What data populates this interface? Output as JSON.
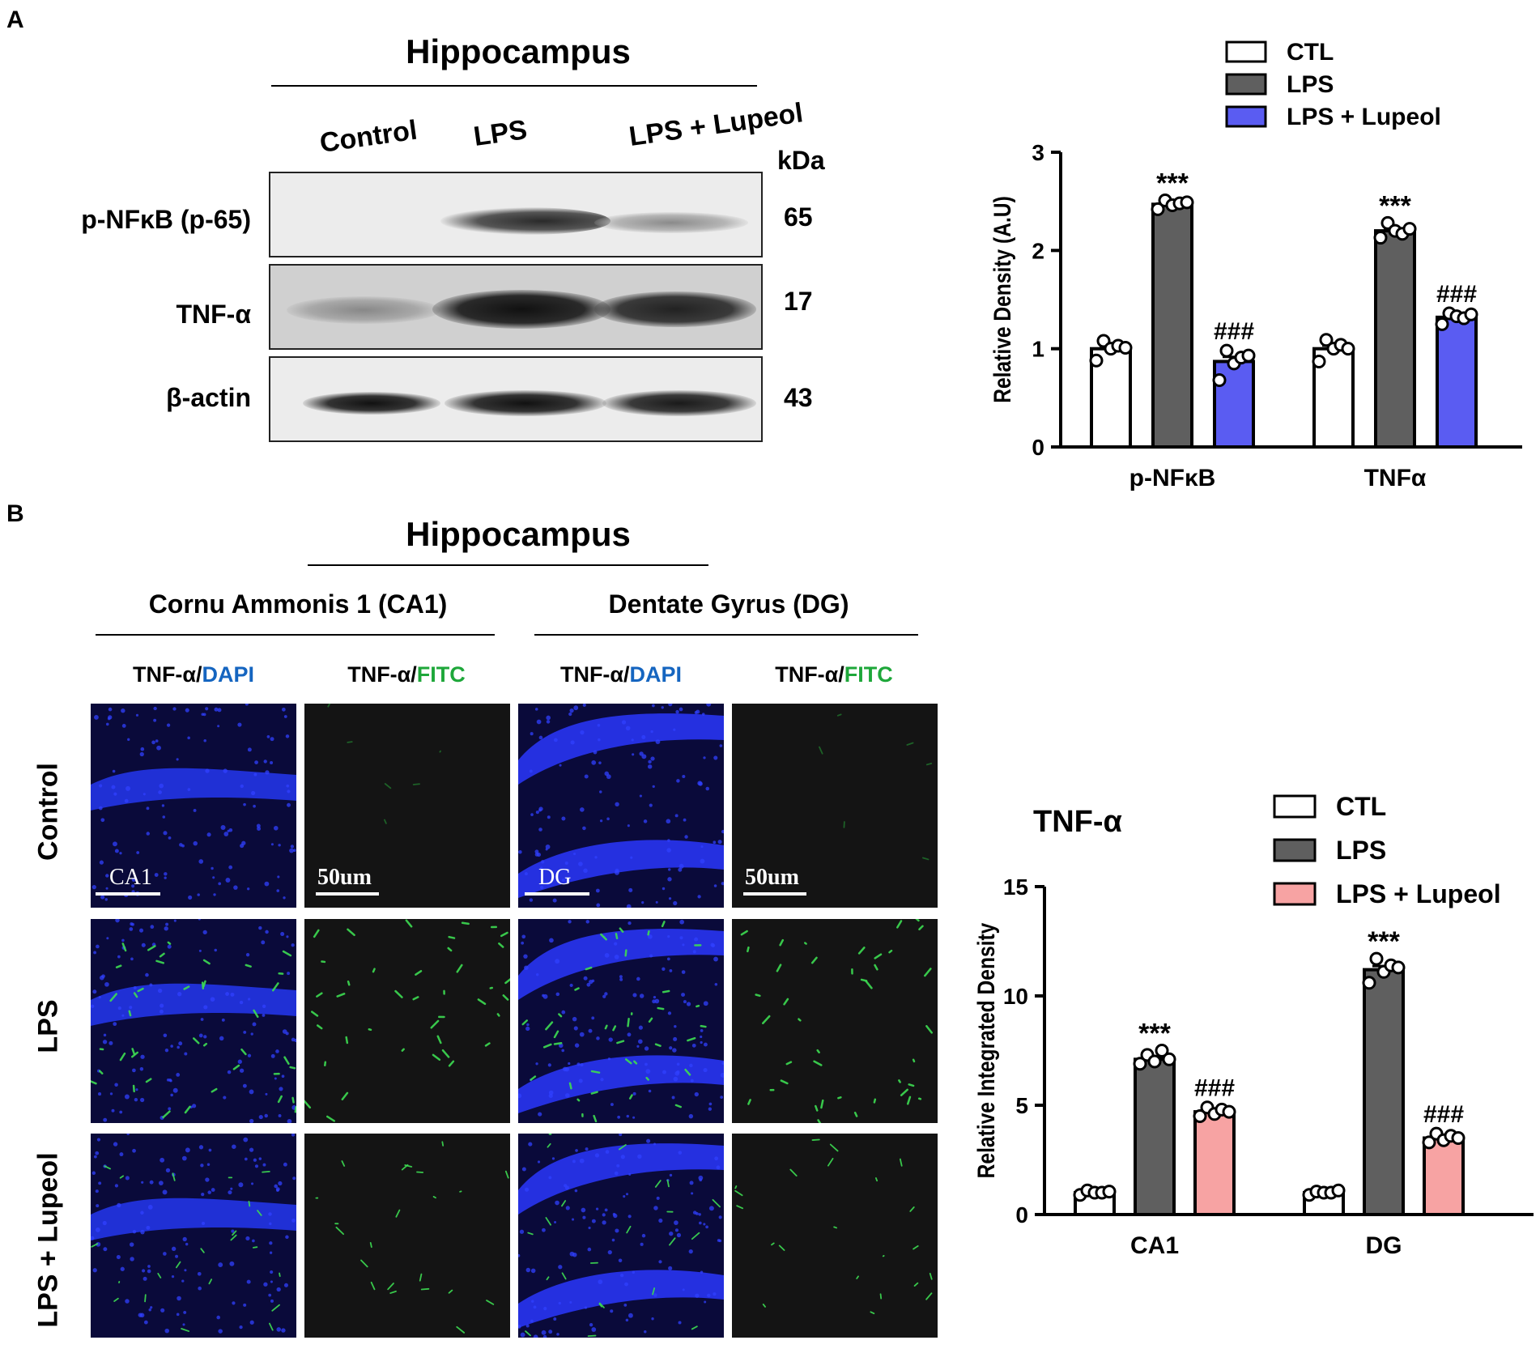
{
  "panelA": {
    "letter": "A",
    "title": "Hippocampus",
    "lanes": [
      "Control",
      "LPS",
      "LPS + Lupeol"
    ],
    "kda_label": "kDa",
    "rows": [
      {
        "label": "p-NFκB (p-65)",
        "kda": "65"
      },
      {
        "label": "TNF-α",
        "kda": "17"
      },
      {
        "label": "β-actin",
        "kda": "43"
      }
    ]
  },
  "panelB": {
    "letter": "B",
    "title": "Hippocampus",
    "regions": [
      "Cornu Ammonis 1 (CA1)",
      "Dentate  Gyrus (DG)"
    ],
    "stain_prefix": "TNF-α/",
    "stains": [
      "DAPI",
      "FITC",
      "DAPI",
      "FITC"
    ],
    "row_labels": [
      "Control",
      "LPS",
      "LPS + Lupeol"
    ],
    "image_labels": [
      "CA1",
      "DG"
    ],
    "scale_text": "50um"
  },
  "colors": {
    "ctl": "#ffffff",
    "lps": "#5f5f5f",
    "lupeol_a": "#5a5cf2",
    "lupeol_b": "#f7a3a3",
    "dapi_blue": "#1565c0",
    "fitc_green": "#1ea73a"
  },
  "chart_data": [
    {
      "type": "bar",
      "title": "",
      "categories": [
        "p-NFκB",
        "TNFα"
      ],
      "ylabel": "Relative Density (A.U)",
      "xlabel": "",
      "ylim": [
        0,
        3
      ],
      "yticks": [
        0,
        1,
        2,
        3
      ],
      "legend": "top-right",
      "series": [
        {
          "name": "CTL",
          "values": [
            1.0,
            1.0
          ],
          "points": [
            [
              0.88,
              1.08,
              1.0,
              1.03,
              1.01
            ],
            [
              0.87,
              1.09,
              1.0,
              1.04,
              1.0
            ]
          ]
        },
        {
          "name": "LPS",
          "values": [
            2.47,
            2.2
          ],
          "points": [
            [
              2.42,
              2.51,
              2.46,
              2.48,
              2.49
            ],
            [
              2.13,
              2.28,
              2.2,
              2.17,
              2.22
            ]
          ]
        },
        {
          "name": "LPS + Lupeol",
          "values": [
            0.87,
            1.32
          ],
          "points": [
            [
              0.68,
              0.98,
              0.85,
              0.91,
              0.93
            ],
            [
              1.25,
              1.36,
              1.33,
              1.31,
              1.35
            ]
          ]
        }
      ],
      "annotations": [
        {
          "category": "p-NFκB",
          "series": "LPS",
          "text": "***"
        },
        {
          "category": "p-NFκB",
          "series": "LPS + Lupeol",
          "text": "###"
        },
        {
          "category": "TNFα",
          "series": "LPS",
          "text": "***"
        },
        {
          "category": "TNFα",
          "series": "LPS + Lupeol",
          "text": "###"
        }
      ]
    },
    {
      "type": "bar",
      "title": "TNF-α",
      "categories": [
        "CA1",
        "DG"
      ],
      "ylabel": "Relative Integrated Density",
      "xlabel": "",
      "ylim": [
        0,
        15
      ],
      "yticks": [
        0,
        5,
        10,
        15
      ],
      "legend": "top-right",
      "series": [
        {
          "name": "CTL",
          "values": [
            1.0,
            1.0
          ],
          "points": [
            [
              0.9,
              1.1,
              1.0,
              1.0,
              1.05
            ],
            [
              0.9,
              1.05,
              1.0,
              1.0,
              1.1
            ]
          ]
        },
        {
          "name": "LPS",
          "values": [
            7.1,
            11.2
          ],
          "points": [
            [
              6.9,
              7.3,
              7.0,
              7.5,
              7.1
            ],
            [
              10.6,
              11.7,
              11.1,
              11.4,
              11.3
            ]
          ]
        },
        {
          "name": "LPS + Lupeol",
          "values": [
            4.7,
            3.5
          ],
          "points": [
            [
              4.5,
              4.9,
              4.6,
              4.8,
              4.7
            ],
            [
              3.3,
              3.7,
              3.4,
              3.6,
              3.5
            ]
          ]
        }
      ],
      "annotations": [
        {
          "category": "CA1",
          "series": "LPS",
          "text": "***"
        },
        {
          "category": "CA1",
          "series": "LPS + Lupeol",
          "text": "###"
        },
        {
          "category": "DG",
          "series": "LPS",
          "text": "***"
        },
        {
          "category": "DG",
          "series": "LPS + Lupeol",
          "text": "###"
        }
      ]
    }
  ]
}
